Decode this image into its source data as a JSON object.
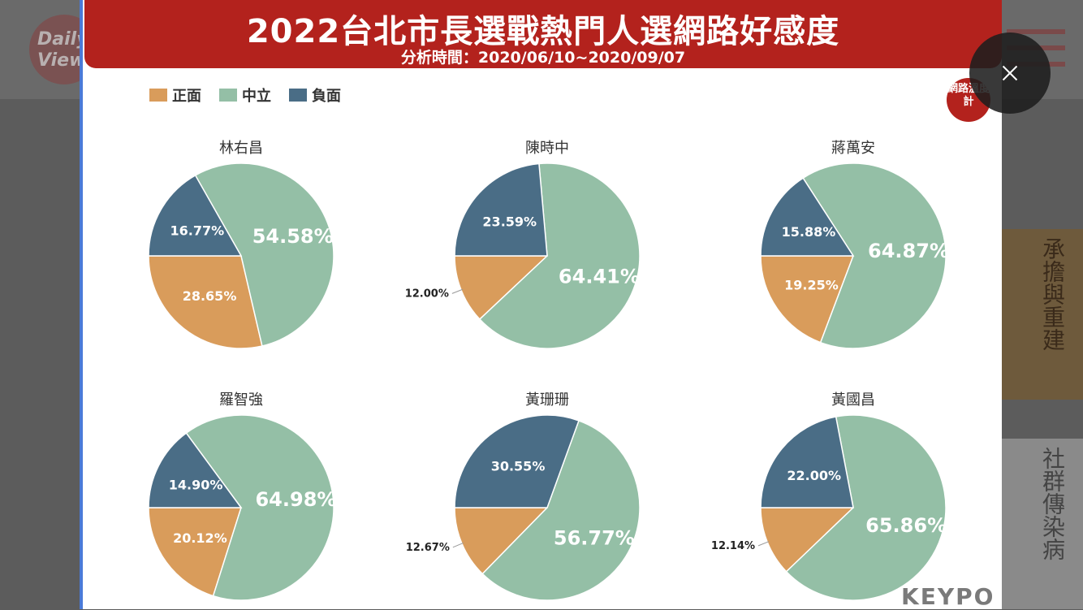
{
  "header": {
    "title": "2022台北市長選戰熱門人選網路好感度",
    "subtitle": "分析時間：2020/06/10~2020/09/07"
  },
  "badge": {
    "label": "網路溫度計"
  },
  "watermark": {
    "text": "KEYPO"
  },
  "background": {
    "logo_text": "Daily View",
    "ad_text_1": "承擔與重建",
    "ad_text_2": "社群傳染病"
  },
  "legend": [
    {
      "label": "正面",
      "color": "#d99c5b"
    },
    {
      "label": "中立",
      "color": "#94bfa6"
    },
    {
      "label": "負面",
      "color": "#4a6d86"
    }
  ],
  "chart_data": [
    {
      "type": "pie",
      "title": "林右昌",
      "labels": [
        "正面",
        "中立",
        "負面"
      ],
      "values": [
        28.65,
        54.58,
        16.77
      ],
      "value_labels": [
        "28.65%",
        "54.58%",
        "16.77%"
      ]
    },
    {
      "type": "pie",
      "title": "陳時中",
      "labels": [
        "正面",
        "中立",
        "負面"
      ],
      "values": [
        12.0,
        64.41,
        23.59
      ],
      "value_labels": [
        "12.00%",
        "64.41%",
        "23.59%"
      ]
    },
    {
      "type": "pie",
      "title": "蔣萬安",
      "labels": [
        "正面",
        "中立",
        "負面"
      ],
      "values": [
        19.25,
        64.87,
        15.88
      ],
      "value_labels": [
        "19.25%",
        "64.87%",
        "15.88%"
      ]
    },
    {
      "type": "pie",
      "title": "羅智強",
      "labels": [
        "正面",
        "中立",
        "負面"
      ],
      "values": [
        20.12,
        64.98,
        14.9
      ],
      "value_labels": [
        "20.12%",
        "64.98%",
        "14.90%"
      ]
    },
    {
      "type": "pie",
      "title": "黃珊珊",
      "labels": [
        "正面",
        "中立",
        "負面"
      ],
      "values": [
        12.67,
        56.77,
        30.55
      ],
      "value_labels": [
        "12.67%",
        "56.77%",
        "30.55%"
      ]
    },
    {
      "type": "pie",
      "title": "黃國昌",
      "labels": [
        "正面",
        "中立",
        "負面"
      ],
      "values": [
        12.14,
        65.86,
        22.0
      ],
      "value_labels": [
        "12.14%",
        "65.86%",
        "22.00%"
      ]
    }
  ]
}
